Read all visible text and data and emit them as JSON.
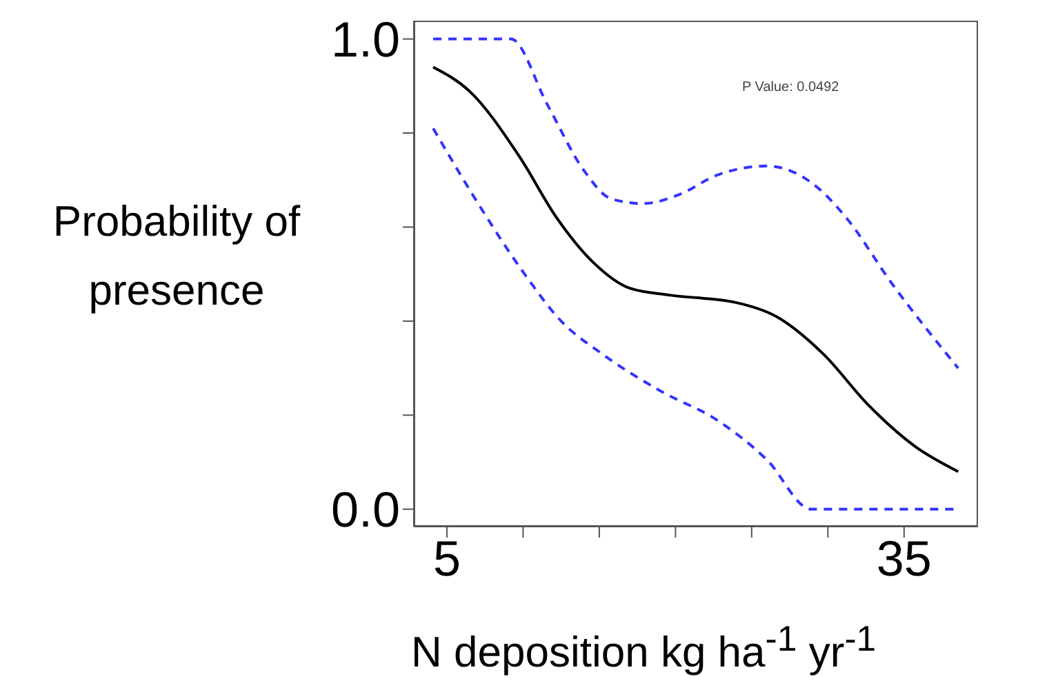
{
  "chart_data": {
    "type": "line",
    "xlabel": "N deposition kg ha$^{-1}$ yr$^{-1}$",
    "ylabel": "Probability of presence",
    "annotations": [
      "P Value: 0.0492"
    ],
    "xlim": [
      2.83,
      39.85
    ],
    "xticks": [
      5,
      {
        "value": 10,
        "label": null
      },
      {
        "value": 15,
        "label": null
      },
      {
        "value": 20,
        "label": null
      },
      {
        "value": 25,
        "label": null
      },
      {
        "value": 30,
        "label": null
      },
      35
    ],
    "ylim": [
      -0.037,
      1.039
    ],
    "yticks": [
      {
        "value": 0,
        "label": "0.0"
      },
      {
        "value": 0.2,
        "label": null
      },
      {
        "value": 0.4,
        "label": null
      },
      {
        "value": 0.6,
        "label": null
      },
      {
        "value": 0.8,
        "label": null
      },
      {
        "value": 1,
        "label": "1.0"
      }
    ],
    "marker": "none",
    "series": [
      {
        "color": "#000000",
        "line_style": "solid",
        "x": [
          4.1,
          6.45,
          9.76,
          12.2,
          14.6,
          17.0,
          19.7,
          23.9,
          26.6,
          29.7,
          32.7,
          35.7,
          38.55
        ],
        "values": [
          0.94,
          0.89,
          0.75,
          0.62,
          0.525,
          0.47,
          0.455,
          0.44,
          0.41,
          0.33,
          0.22,
          0.134,
          0.08
        ]
      },
      {
        "color": "#3333ff",
        "line_style": "dashed",
        "x": [
          4.1,
          9.2,
          11.6,
          14.0,
          15.8,
          17.9,
          20.3,
          22.7,
          26.0,
          29.1,
          31.2,
          34.2,
          38.55
        ],
        "values": [
          1.0,
          1.0,
          0.86,
          0.72,
          0.66,
          0.65,
          0.67,
          0.71,
          0.73,
          0.69,
          0.62,
          0.48,
          0.3
        ]
      },
      {
        "color": "#3333ff",
        "line_style": "dashed",
        "x": [
          4.1,
          7.05,
          10.1,
          12.5,
          15.2,
          19.1,
          22.7,
          26.0,
          28.9,
          38.55
        ],
        "values": [
          0.81,
          0.65,
          0.5,
          0.4,
          0.33,
          0.25,
          0.19,
          0.105,
          0.0,
          0.0
        ]
      }
    ]
  }
}
